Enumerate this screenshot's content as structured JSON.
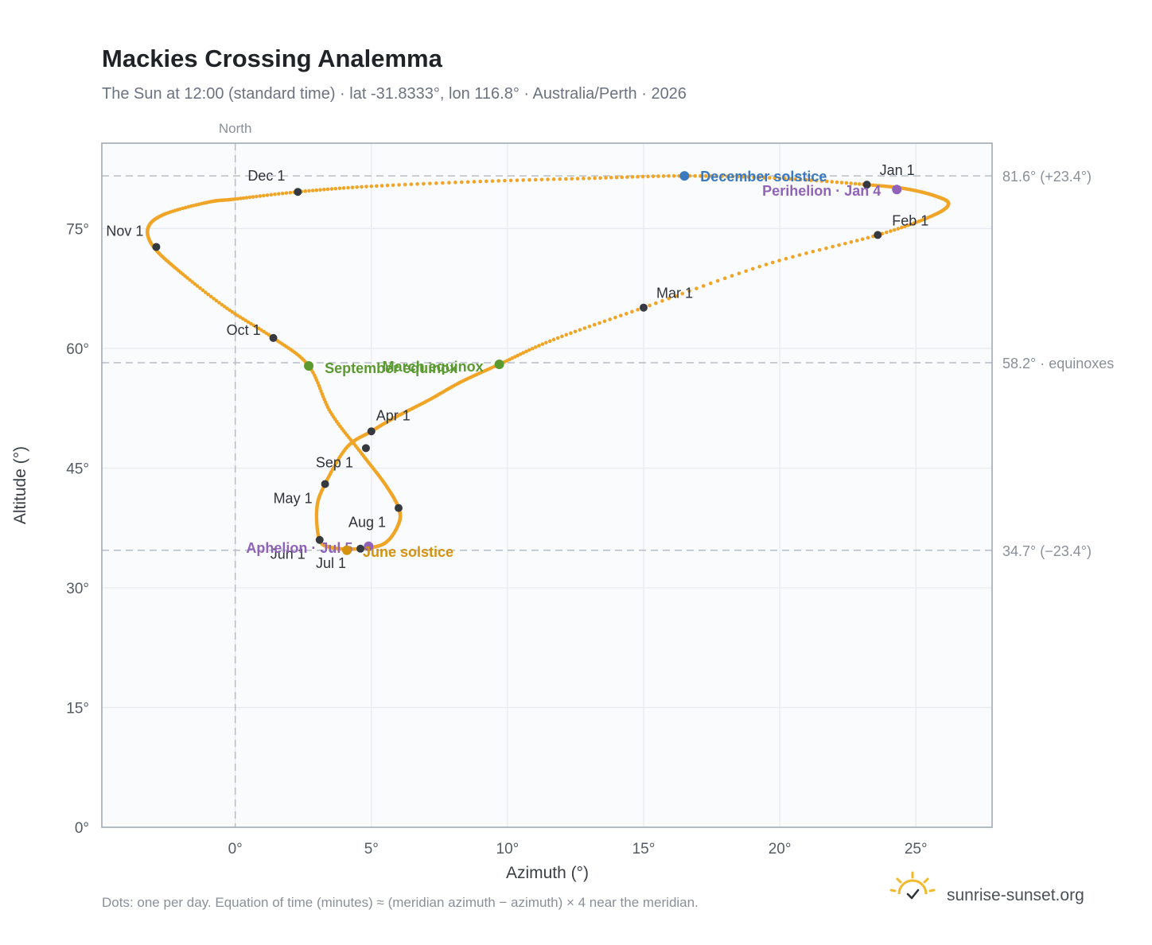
{
  "chart_data": {
    "type": "scatter",
    "title": "Mackies Crossing Analemma",
    "subtitle": "The Sun at 12:00 (standard time) · lat -31.8333°, lon 116.8° · Australia/Perth · 2026",
    "xlabel": "Azimuth (°)",
    "ylabel": "Altitude (°)",
    "xlim": [
      -4.9,
      27.8
    ],
    "ylim": [
      0,
      85.7
    ],
    "x_ticks": [
      0,
      5,
      10,
      15,
      20,
      25
    ],
    "y_ticks": [
      0,
      15,
      30,
      45,
      60,
      75
    ],
    "x_tick_labels": [
      "0°",
      "5°",
      "10°",
      "15°",
      "20°",
      "25°"
    ],
    "y_tick_labels": [
      "0°",
      "15°",
      "30°",
      "45°",
      "60°",
      "75°"
    ],
    "grid": true,
    "north_label": "North",
    "north_azimuth": 0,
    "reference_lines": [
      {
        "y": 81.6,
        "label": "81.6° (+23.4°)"
      },
      {
        "y": 58.2,
        "label": "58.2° · equinoxes"
      },
      {
        "y": 34.7,
        "label": "34.7° (−23.4°)"
      }
    ],
    "analemma_points": [
      [
        23.2,
        80.5
      ],
      [
        24.6,
        80.0
      ],
      [
        25.7,
        79.1
      ],
      [
        26.2,
        78.1
      ],
      [
        25.6,
        76.6
      ],
      [
        23.6,
        74.2
      ],
      [
        19.5,
        70.5
      ],
      [
        15.0,
        65.1
      ],
      [
        11.7,
        61.1
      ],
      [
        9.7,
        58.0
      ],
      [
        8.3,
        55.8
      ],
      [
        7.1,
        53.5
      ],
      [
        5.9,
        51.4
      ],
      [
        5.0,
        49.6
      ],
      [
        4.1,
        47.6
      ],
      [
        3.3,
        43.0
      ],
      [
        3.0,
        40.0
      ],
      [
        3.1,
        36.0
      ],
      [
        3.6,
        35.0
      ],
      [
        4.6,
        34.9
      ],
      [
        5.5,
        35.6
      ],
      [
        6.0,
        38.0
      ],
      [
        6.0,
        40.0
      ],
      [
        5.5,
        43.0
      ],
      [
        4.6,
        47.0
      ],
      [
        3.5,
        52.0
      ],
      [
        2.7,
        57.8
      ],
      [
        1.4,
        61.3
      ],
      [
        -0.3,
        65.0
      ],
      [
        -2.0,
        69.5
      ],
      [
        -3.0,
        72.7
      ],
      [
        -3.2,
        75.1
      ],
      [
        -2.6,
        76.8
      ],
      [
        -1.0,
        78.3
      ],
      [
        0.0,
        78.7
      ],
      [
        2.3,
        79.6
      ],
      [
        5.0,
        80.3
      ],
      [
        9.0,
        80.9
      ],
      [
        13.0,
        81.3
      ],
      [
        16.5,
        81.6
      ],
      [
        20.0,
        81.3
      ],
      [
        23.2,
        80.5
      ]
    ],
    "month_markers": [
      {
        "label": "Jan 1",
        "x": 23.2,
        "y": 80.5
      },
      {
        "label": "Feb 1",
        "x": 23.6,
        "y": 74.2
      },
      {
        "label": "Mar 1",
        "x": 15.0,
        "y": 65.1
      },
      {
        "label": "Apr 1",
        "x": 5.0,
        "y": 49.6
      },
      {
        "label": "May 1",
        "x": 3.3,
        "y": 43.0
      },
      {
        "label": "Jun 1",
        "x": 3.1,
        "y": 36.0
      },
      {
        "label": "Jul 1",
        "x": 4.6,
        "y": 34.9
      },
      {
        "label": "Aug 1",
        "x": 6.0,
        "y": 40.0
      },
      {
        "label": "Sep 1",
        "x": 4.8,
        "y": 47.5
      },
      {
        "label": "Oct 1",
        "x": 1.4,
        "y": 61.3
      },
      {
        "label": "Nov 1",
        "x": -2.9,
        "y": 72.7
      },
      {
        "label": "Dec 1",
        "x": 2.3,
        "y": 79.6
      }
    ],
    "events": [
      {
        "label": "December solstice",
        "x": 16.5,
        "y": 81.6,
        "color": "#3a78c2"
      },
      {
        "label": "Perihelion · Jan 4",
        "x": 24.3,
        "y": 79.9,
        "color": "#9063b8"
      },
      {
        "label": "March equinox",
        "x": 9.7,
        "y": 58.0,
        "color": "#5a9a2e"
      },
      {
        "label": "September equinox",
        "x": 2.7,
        "y": 57.8,
        "color": "#5a9a2e"
      },
      {
        "label": "Aphelion · Jul 5",
        "x": 4.9,
        "y": 35.2,
        "color": "#9063b8"
      },
      {
        "label": "June solstice",
        "x": 4.1,
        "y": 34.7,
        "color": "#d4920f"
      }
    ],
    "colors": {
      "curve": "#f0a526",
      "month_dot": "#343a40",
      "reference_line": "#b6bec8",
      "plot_bg": "#fafbfd",
      "frame": "#a2aab4"
    }
  },
  "footnote": "Dots: one per day. Equation of time (minutes) ≈ (meridian azimuth − azimuth) × 4 near the meridian.",
  "brand": {
    "name": "sunrise-sunset.org",
    "icon": "sun-check-icon"
  }
}
